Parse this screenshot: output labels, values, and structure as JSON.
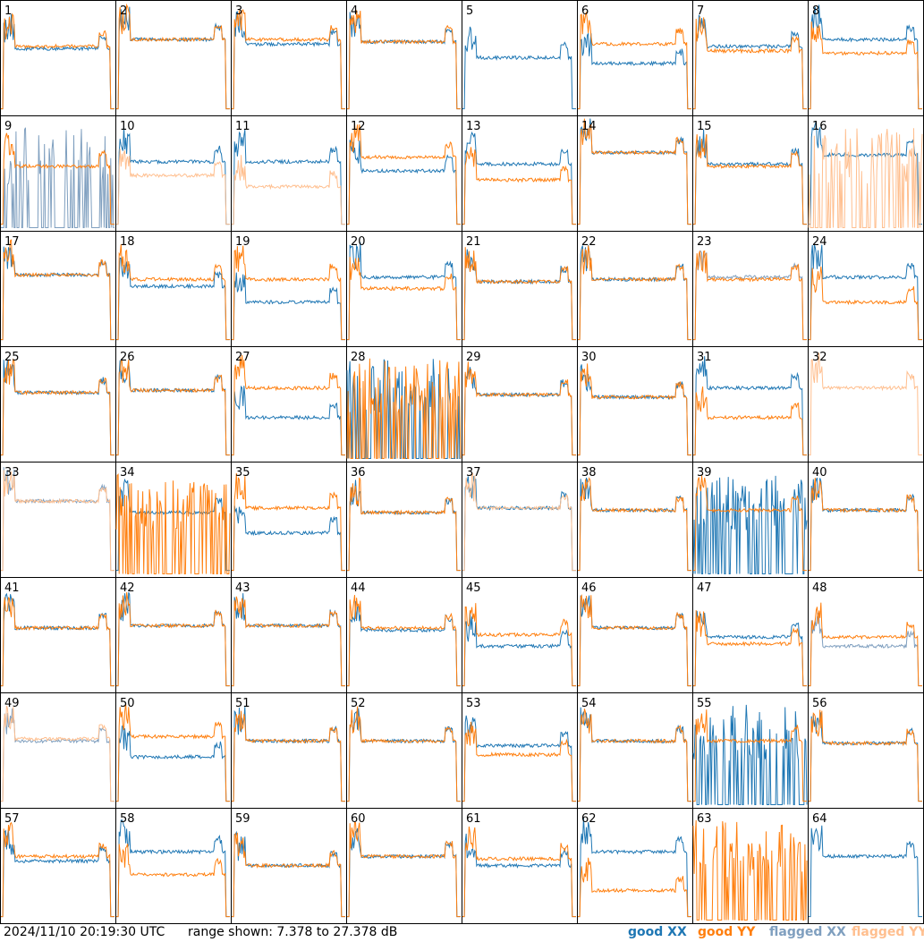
{
  "chart_data": {
    "type": "line",
    "description_units": "dB",
    "x": "frequency channel (unlabelled)",
    "ylim": [
      7.378,
      27.378
    ],
    "grid": false,
    "layout": "8x8 small-multiples",
    "colors": {
      "good_xx": "#1f77b4",
      "good_yy": "#ff7f0e",
      "flagged_xx": "#7f9fbf",
      "flagged_yy": "#ffbf8f"
    },
    "panels": [
      {
        "id": "1",
        "xx": "good",
        "yy": "good",
        "xx_level": 0.42,
        "yy_level": 0.4
      },
      {
        "id": "2",
        "xx": "good",
        "yy": "good",
        "xx_level": 0.34,
        "yy_level": 0.34
      },
      {
        "id": "3",
        "xx": "good",
        "yy": "good",
        "xx_level": 0.38,
        "yy_level": 0.34
      },
      {
        "id": "4",
        "xx": "good",
        "yy": "good",
        "xx_level": 0.36,
        "yy_level": 0.36
      },
      {
        "id": "5",
        "xx": "good",
        "yy": "none",
        "xx_level": 0.5,
        "yy_level": 0.0
      },
      {
        "id": "6",
        "xx": "good",
        "yy": "good",
        "xx_level": 0.55,
        "yy_level": 0.38
      },
      {
        "id": "7",
        "xx": "good",
        "yy": "good",
        "xx_level": 0.4,
        "yy_level": 0.44
      },
      {
        "id": "8",
        "xx": "good",
        "yy": "good",
        "xx_level": 0.34,
        "yy_level": 0.46
      },
      {
        "id": "9",
        "xx": "flagged",
        "yy": "good",
        "xx_level": 0.05,
        "yy_level": 0.44
      },
      {
        "id": "10",
        "xx": "good",
        "yy": "flagged",
        "xx_level": 0.4,
        "yy_level": 0.52
      },
      {
        "id": "11",
        "xx": "good",
        "yy": "flagged",
        "xx_level": 0.4,
        "yy_level": 0.62
      },
      {
        "id": "12",
        "xx": "good",
        "yy": "good",
        "xx_level": 0.48,
        "yy_level": 0.36
      },
      {
        "id": "13",
        "xx": "good",
        "yy": "good",
        "xx_level": 0.42,
        "yy_level": 0.56
      },
      {
        "id": "14",
        "xx": "good",
        "yy": "good",
        "xx_level": 0.32,
        "yy_level": 0.32
      },
      {
        "id": "15",
        "xx": "good",
        "yy": "good",
        "xx_level": 0.42,
        "yy_level": 0.44
      },
      {
        "id": "16",
        "xx": "good",
        "yy": "flagged",
        "xx_level": 0.34,
        "yy_level": 0.02
      },
      {
        "id": "17",
        "xx": "good",
        "yy": "good",
        "xx_level": 0.38,
        "yy_level": 0.38
      },
      {
        "id": "18",
        "xx": "good",
        "yy": "good",
        "xx_level": 0.48,
        "yy_level": 0.42
      },
      {
        "id": "19",
        "xx": "good",
        "yy": "good",
        "xx_level": 0.62,
        "yy_level": 0.42
      },
      {
        "id": "20",
        "xx": "good",
        "yy": "good",
        "xx_level": 0.4,
        "yy_level": 0.5
      },
      {
        "id": "21",
        "xx": "good",
        "yy": "good",
        "xx_level": 0.44,
        "yy_level": 0.44
      },
      {
        "id": "22",
        "xx": "good",
        "yy": "good",
        "xx_level": 0.42,
        "yy_level": 0.42
      },
      {
        "id": "23",
        "xx": "flagged",
        "yy": "good",
        "xx_level": 0.4,
        "yy_level": 0.42
      },
      {
        "id": "24",
        "xx": "good",
        "yy": "good",
        "xx_level": 0.4,
        "yy_level": 0.62
      },
      {
        "id": "25",
        "xx": "good",
        "yy": "good",
        "xx_level": 0.4,
        "yy_level": 0.4
      },
      {
        "id": "26",
        "xx": "good",
        "yy": "good",
        "xx_level": 0.38,
        "yy_level": 0.38
      },
      {
        "id": "27",
        "xx": "good",
        "yy": "good",
        "xx_level": 0.62,
        "yy_level": 0.36
      },
      {
        "id": "28",
        "xx": "good",
        "yy": "good",
        "xx_level": 0.0,
        "yy_level": 0.0
      },
      {
        "id": "29",
        "xx": "good",
        "yy": "good",
        "xx_level": 0.42,
        "yy_level": 0.42
      },
      {
        "id": "30",
        "xx": "good",
        "yy": "good",
        "xx_level": 0.44,
        "yy_level": 0.44
      },
      {
        "id": "31",
        "xx": "good",
        "yy": "good",
        "xx_level": 0.36,
        "yy_level": 0.62
      },
      {
        "id": "32",
        "xx": "none",
        "yy": "flagged",
        "xx_level": 0.0,
        "yy_level": 0.36
      },
      {
        "id": "33",
        "xx": "flagged",
        "yy": "flagged",
        "xx_level": 0.34,
        "yy_level": 0.34
      },
      {
        "id": "34",
        "xx": "good",
        "yy": "good",
        "xx_level": 0.44,
        "yy_level": 0.04
      },
      {
        "id": "35",
        "xx": "good",
        "yy": "good",
        "xx_level": 0.62,
        "yy_level": 0.4
      },
      {
        "id": "36",
        "xx": "good",
        "yy": "good",
        "xx_level": 0.44,
        "yy_level": 0.44
      },
      {
        "id": "37",
        "xx": "good",
        "yy": "flagged",
        "xx_level": 0.4,
        "yy_level": 0.4
      },
      {
        "id": "38",
        "xx": "good",
        "yy": "good",
        "xx_level": 0.42,
        "yy_level": 0.42
      },
      {
        "id": "39",
        "xx": "good",
        "yy": "good",
        "xx_level": 0.05,
        "yy_level": 0.42
      },
      {
        "id": "40",
        "xx": "good",
        "yy": "good",
        "xx_level": 0.42,
        "yy_level": 0.42
      },
      {
        "id": "41",
        "xx": "good",
        "yy": "good",
        "xx_level": 0.44,
        "yy_level": 0.44
      },
      {
        "id": "42",
        "xx": "good",
        "yy": "good",
        "xx_level": 0.42,
        "yy_level": 0.42
      },
      {
        "id": "43",
        "xx": "good",
        "yy": "good",
        "xx_level": 0.42,
        "yy_level": 0.42
      },
      {
        "id": "44",
        "xx": "good",
        "yy": "good",
        "xx_level": 0.46,
        "yy_level": 0.44
      },
      {
        "id": "45",
        "xx": "good",
        "yy": "good",
        "xx_level": 0.6,
        "yy_level": 0.5
      },
      {
        "id": "46",
        "xx": "good",
        "yy": "good",
        "xx_level": 0.44,
        "yy_level": 0.44
      },
      {
        "id": "47",
        "xx": "good",
        "yy": "good",
        "xx_level": 0.52,
        "yy_level": 0.58
      },
      {
        "id": "48",
        "xx": "flagged",
        "yy": "good",
        "xx_level": 0.6,
        "yy_level": 0.52
      },
      {
        "id": "49",
        "xx": "flagged",
        "yy": "flagged",
        "xx_level": 0.42,
        "yy_level": 0.4
      },
      {
        "id": "50",
        "xx": "good",
        "yy": "good",
        "xx_level": 0.56,
        "yy_level": 0.38
      },
      {
        "id": "51",
        "xx": "good",
        "yy": "good",
        "xx_level": 0.42,
        "yy_level": 0.42
      },
      {
        "id": "52",
        "xx": "good",
        "yy": "good",
        "xx_level": 0.42,
        "yy_level": 0.42
      },
      {
        "id": "53",
        "xx": "good",
        "yy": "good",
        "xx_level": 0.46,
        "yy_level": 0.54
      },
      {
        "id": "54",
        "xx": "good",
        "yy": "good",
        "xx_level": 0.42,
        "yy_level": 0.42
      },
      {
        "id": "55",
        "xx": "good",
        "yy": "good",
        "xx_level": 0.05,
        "yy_level": 0.42
      },
      {
        "id": "56",
        "xx": "good",
        "yy": "good",
        "xx_level": 0.44,
        "yy_level": 0.44
      },
      {
        "id": "57",
        "xx": "good",
        "yy": "good",
        "xx_level": 0.46,
        "yy_level": 0.42
      },
      {
        "id": "58",
        "xx": "good",
        "yy": "good",
        "xx_level": 0.38,
        "yy_level": 0.58
      },
      {
        "id": "59",
        "xx": "good",
        "yy": "good",
        "xx_level": 0.5,
        "yy_level": 0.5
      },
      {
        "id": "60",
        "xx": "good",
        "yy": "good",
        "xx_level": 0.42,
        "yy_level": 0.42
      },
      {
        "id": "61",
        "xx": "good",
        "yy": "good",
        "xx_level": 0.5,
        "yy_level": 0.44
      },
      {
        "id": "62",
        "xx": "good",
        "yy": "good",
        "xx_level": 0.38,
        "yy_level": 0.72
      },
      {
        "id": "63",
        "xx": "none",
        "yy": "good",
        "xx_level": 0.0,
        "yy_level": 0.0
      },
      {
        "id": "64",
        "xx": "good",
        "yy": "none",
        "xx_level": 0.42,
        "yy_level": 0.0
      }
    ]
  },
  "footer": {
    "timestamp": "2024/11/10 20:19:30 UTC",
    "range": "range shown: 7.378 to 27.378 dB"
  },
  "legend": {
    "good_xx": "good XX",
    "good_yy": "good YY",
    "flagged_xx": "flagged XX",
    "flagged_yy": "flagged YY"
  }
}
